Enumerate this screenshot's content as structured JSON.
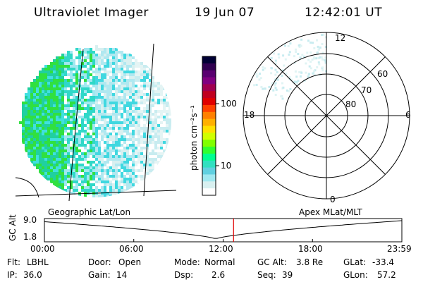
{
  "header": {
    "title": "Ultraviolet Imager",
    "date": "19 Jun 07",
    "time": "12:42:01 UT"
  },
  "colorbar": {
    "unit_label": "photon cm⁻²s⁻¹",
    "ticks": [
      {
        "label": "100",
        "value": 100
      },
      {
        "label": "10",
        "value": 10
      }
    ],
    "range": [
      2,
      700
    ],
    "colors": [
      "#000033",
      "#300050",
      "#5a0070",
      "#800080",
      "#a00050",
      "#c00020",
      "#e00000",
      "#ff4000",
      "#ff8000",
      "#ffb000",
      "#ffe000",
      "#d0ff00",
      "#80ff00",
      "#30ff30",
      "#00ff90",
      "#30e0c0",
      "#60d0e0",
      "#a0e8f0",
      "#d8f0f0",
      "#ffffff"
    ]
  },
  "polar_plot": {
    "mlt_labels": {
      "top": "12",
      "left": "18",
      "right": "6",
      "bottom": "0"
    },
    "mlat_labels": [
      "60",
      "70",
      "80"
    ]
  },
  "timeline": {
    "left_label": "Geographic Lat/Lon",
    "right_label": "Apex MLat/MLT",
    "axis_title": "GC Alt",
    "y_ticks": [
      "9.0",
      "1.8"
    ],
    "x_ticks": [
      "00:00",
      "06:00",
      "12:00",
      "18:00",
      "23:59"
    ],
    "current_time_hours": 12.7,
    "marker_color": "#e00000"
  },
  "info": {
    "flt": {
      "label": "Flt:",
      "value": "LBHL"
    },
    "ip": {
      "label": "IP:",
      "value": "36.0"
    },
    "door": {
      "label": "Door:",
      "value": "Open"
    },
    "gain": {
      "label": "Gain:",
      "value": "14"
    },
    "mode": {
      "label": "Mode:",
      "value": "Normal"
    },
    "dsp": {
      "label": "Dsp:",
      "value": "2.6"
    },
    "gcalt": {
      "label": "GC Alt:",
      "value": "3.8 Re"
    },
    "seq": {
      "label": "Seq:",
      "value": "39"
    },
    "glat": {
      "label": "GLat:",
      "value": "-33.4"
    },
    "glon": {
      "label": "GLon:",
      "value": "57.2"
    }
  }
}
